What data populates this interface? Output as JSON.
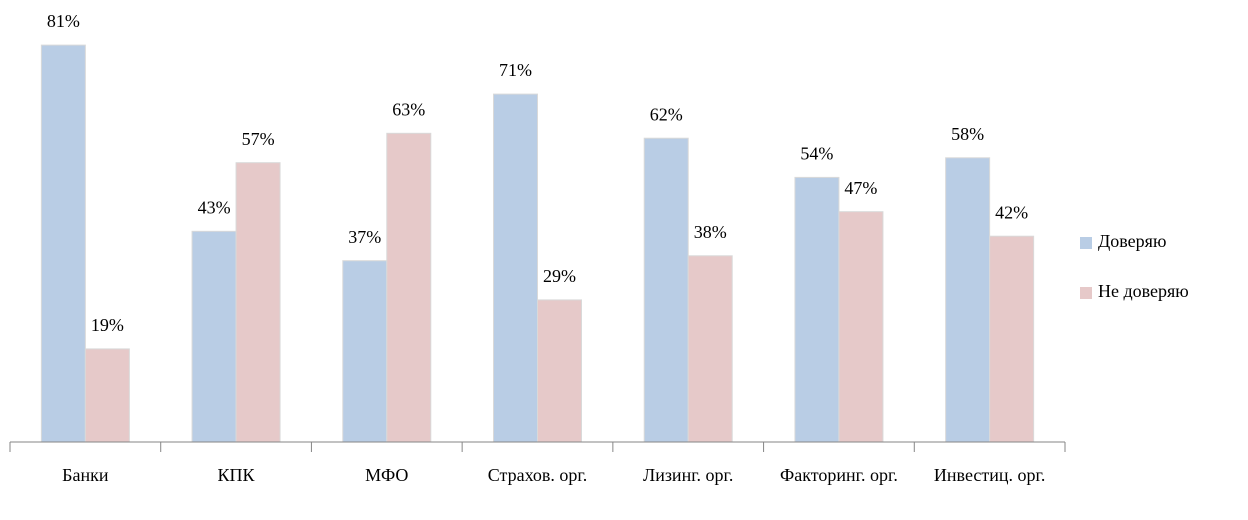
{
  "chart_data": {
    "type": "bar",
    "categories": [
      "Банки",
      "КПК",
      "МФО",
      "Страхов. орг.",
      "Лизинг. орг.",
      "Факторинг. орг.",
      "Инвестиц. орг."
    ],
    "series": [
      {
        "name": "Доверяю",
        "color": "#b9cde5",
        "values": [
          81,
          43,
          37,
          71,
          62,
          54,
          58
        ],
        "value_labels": [
          "81%",
          "43%",
          "37%",
          "71%",
          "62%",
          "54%",
          "58%"
        ]
      },
      {
        "name": "Не доверяю",
        "color": "#e6c9c9",
        "values": [
          19,
          57,
          63,
          29,
          38,
          47,
          42
        ],
        "value_labels": [
          "19%",
          "57%",
          "63%",
          "29%",
          "38%",
          "47%",
          "42%"
        ]
      }
    ],
    "ylim": [
      0,
      90
    ],
    "legend": "right"
  }
}
